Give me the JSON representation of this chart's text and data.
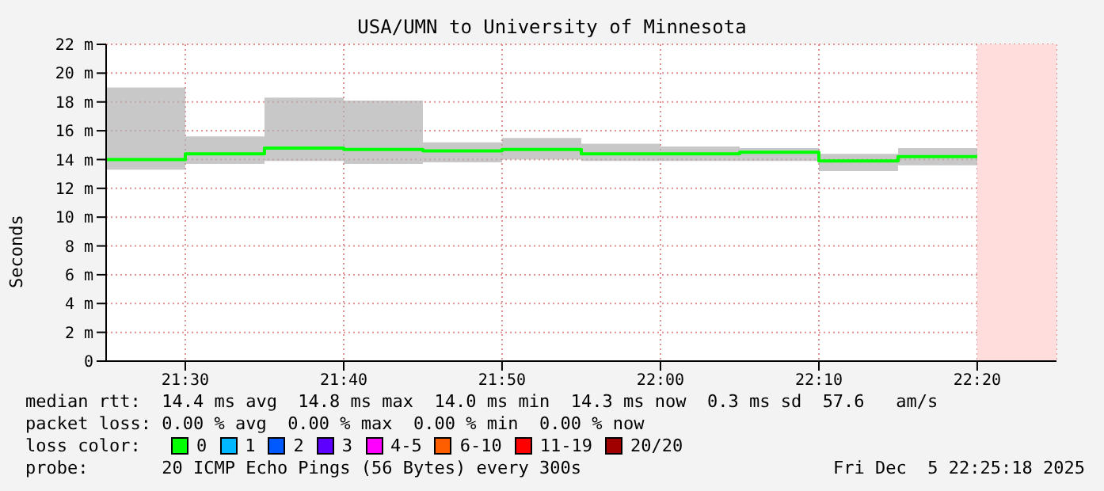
{
  "chart_data": {
    "type": "step",
    "title": "USA/UMN to University of Minnesota",
    "ylabel": "Seconds",
    "x": [
      21.4167,
      21.5,
      21.5833,
      21.6667,
      21.75,
      21.8333,
      21.9167,
      22.0,
      22.0833,
      22.1667,
      22.25,
      22.3333
    ],
    "series": [
      {
        "color": "#00ff00",
        "values": [
          14.0,
          14.4,
          14.8,
          14.7,
          14.6,
          14.7,
          14.4,
          14.4,
          14.5,
          13.9,
          14.2,
          14.2
        ],
        "lower": [
          13.3,
          13.7,
          13.9,
          13.7,
          13.8,
          14.0,
          13.9,
          13.9,
          13.9,
          13.2,
          13.6,
          13.6
        ],
        "upper": [
          19.0,
          15.6,
          18.3,
          18.1,
          15.2,
          15.5,
          15.1,
          14.9,
          14.8,
          14.4,
          14.8,
          14.8
        ]
      }
    ],
    "xlim": [
      21.4167,
      22.4167
    ],
    "xticks": [
      {
        "value": 21.5,
        "label": "21:30"
      },
      {
        "value": 21.6667,
        "label": "21:40"
      },
      {
        "value": 21.8333,
        "label": "21:50"
      },
      {
        "value": 22.0,
        "label": "22:00"
      },
      {
        "value": 22.1667,
        "label": "22:10"
      },
      {
        "value": 22.3333,
        "label": "22:20"
      }
    ],
    "ylim": [
      0,
      22
    ],
    "yticks": [
      {
        "value": 0,
        "label": "0"
      },
      {
        "value": 2,
        "label": "2 m"
      },
      {
        "value": 4,
        "label": "4 m"
      },
      {
        "value": 6,
        "label": "6 m"
      },
      {
        "value": 8,
        "label": "8 m"
      },
      {
        "value": 10,
        "label": "10 m"
      },
      {
        "value": 12,
        "label": "12 m"
      },
      {
        "value": 14,
        "label": "14 m"
      },
      {
        "value": 16,
        "label": "16 m"
      },
      {
        "value": 18,
        "label": "18 m"
      },
      {
        "value": 20,
        "label": "20 m"
      },
      {
        "value": 22,
        "label": "22 m"
      }
    ],
    "bands": [
      {
        "axis": "x",
        "from": 22.3333,
        "to": 22.4167,
        "color": "#ffdddd"
      }
    ],
    "grid": true,
    "annotations": [
      "median rtt:  14.4 ms avg  14.8 ms max  14.0 ms min  14.3 ms now  0.3 ms sd  57.6   am/s",
      "packet loss: 0.00 % avg  0.00 % max  0.00 % min  0.00 % now",
      "loss color:",
      "0",
      "1",
      "2",
      "3",
      "4-5",
      "6-10",
      "11-19",
      "20/20",
      "probe:       20 ICMP Echo Pings (56 Bytes) every 300s",
      "Fri Dec  5 22:25:18 2025"
    ]
  }
}
